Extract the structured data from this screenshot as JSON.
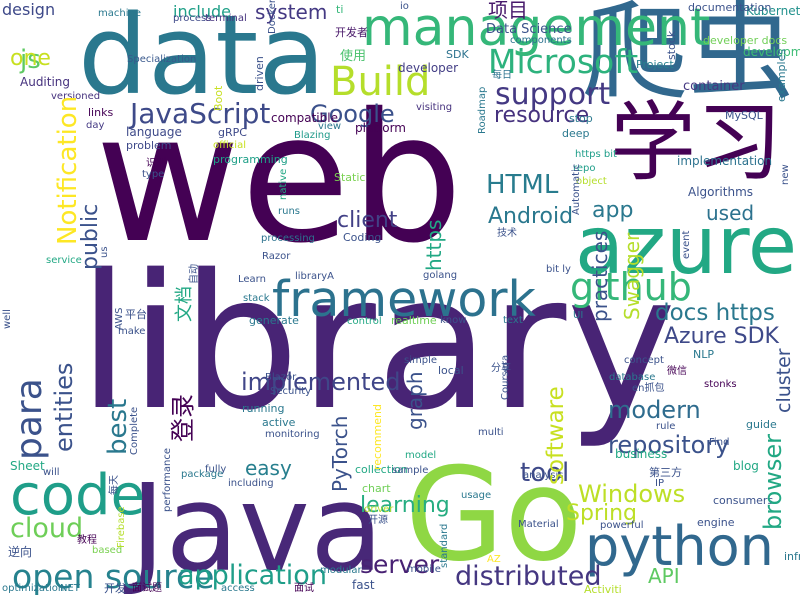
{
  "words": [
    {
      "text": "web",
      "color": "#440154"
    },
    {
      "text": "library",
      "color": "#482475"
    },
    {
      "text": "data",
      "color": "#2a788e"
    },
    {
      "text": "爬虫",
      "color": "#31688e"
    },
    {
      "text": "Java",
      "color": "#482878"
    },
    {
      "text": "Go",
      "color": "#8fd744"
    },
    {
      "text": "学习",
      "color": "#440154"
    },
    {
      "text": "azure",
      "color": "#22a884"
    },
    {
      "text": "framework",
      "color": "#2c728e"
    },
    {
      "text": "python",
      "color": "#31688e"
    },
    {
      "text": "code",
      "color": "#1f9e89"
    },
    {
      "text": "management",
      "color": "#35b779"
    },
    {
      "text": "Build",
      "color": "#b5de2b"
    },
    {
      "text": "github",
      "color": "#35b779"
    },
    {
      "text": "open source",
      "color": "#26828e"
    },
    {
      "text": "application",
      "color": "#1f9e89"
    },
    {
      "text": "JavaScript",
      "color": "#3e4a89"
    },
    {
      "text": "distributed",
      "color": "#453781"
    },
    {
      "text": "Microsoft",
      "color": "#2db27d"
    },
    {
      "text": "cloud",
      "color": "#6ece58"
    },
    {
      "text": "support",
      "color": "#443983"
    },
    {
      "text": "tool",
      "color": "#3e4989"
    },
    {
      "text": "Windows",
      "color": "#bddf26"
    },
    {
      "text": "HTML",
      "color": "#287c8e"
    },
    {
      "text": "app",
      "color": "#2a788e"
    },
    {
      "text": "docs https",
      "color": "#2a788e"
    },
    {
      "text": "repository",
      "color": "#3b528b"
    },
    {
      "text": "Google",
      "color": "#3b518b"
    },
    {
      "text": "resource",
      "color": "#46327e"
    },
    {
      "text": "client",
      "color": "#424086"
    },
    {
      "text": "Android",
      "color": "#2a788e"
    },
    {
      "text": "used",
      "color": "#2c728e"
    },
    {
      "text": "modern",
      "color": "#2f6c8e"
    },
    {
      "text": "Spring",
      "color": "#bddf26"
    },
    {
      "text": "learning",
      "color": "#26ad81"
    },
    {
      "text": "easy",
      "color": "#277f8e"
    },
    {
      "text": "server",
      "color": "#482173"
    },
    {
      "text": "API",
      "color": "#5ec962"
    },
    {
      "text": "implemented",
      "color": "#404688"
    },
    {
      "text": "js",
      "color": "#5ec962"
    },
    {
      "text": "one",
      "color": "#c8e020"
    },
    {
      "text": "项目",
      "color": "#481a6c"
    },
    {
      "text": "system",
      "color": "#443983"
    },
    {
      "text": "include",
      "color": "#1fa088"
    },
    {
      "text": "design",
      "color": "#3e4989"
    },
    {
      "text": "Azure SDK",
      "color": "#3e4989"
    },
    {
      "text": "使用",
      "color": "#4ac16d"
    },
    {
      "text": "Data Science",
      "color": "#3b528b"
    },
    {
      "text": "developer",
      "color": "#433e85"
    },
    {
      "text": "container",
      "color": "#453882"
    },
    {
      "text": "platform",
      "color": "#440154"
    },
    {
      "text": "language",
      "color": "#3e4a89"
    },
    {
      "text": "Algorithms",
      "color": "#3b528b"
    },
    {
      "text": "implementation",
      "color": "#2c728e"
    },
    {
      "text": "MySQL",
      "color": "#3b528b"
    },
    {
      "text": "development",
      "color": "#3dbc74"
    },
    {
      "text": "developer docs",
      "color": "#70cf57"
    },
    {
      "text": "Project",
      "color": "#277f8e"
    },
    {
      "text": "Kubernetes",
      "color": "#21918c"
    },
    {
      "text": "documentation",
      "color": "#3b528b"
    },
    {
      "text": "components",
      "color": "#2c728e"
    },
    {
      "text": "SDK",
      "color": "#2c728e"
    },
    {
      "text": "开发者",
      "color": "#481769"
    },
    {
      "text": "ti",
      "color": "#35b779"
    },
    {
      "text": "io",
      "color": "#3b528b"
    },
    {
      "text": "process",
      "color": "#3e4989"
    },
    {
      "text": "machine",
      "color": "#2a788e"
    },
    {
      "text": "terminal",
      "color": "#46327e"
    },
    {
      "text": "Specialization",
      "color": "#38588c"
    },
    {
      "text": "Auditing",
      "color": "#46327e"
    },
    {
      "text": "versioned",
      "color": "#46327e"
    },
    {
      "text": "links",
      "color": "#440154"
    },
    {
      "text": "day",
      "color": "#443983"
    },
    {
      "text": "gRPC",
      "color": "#3e4989"
    },
    {
      "text": "problem",
      "color": "#3e4989"
    },
    {
      "text": "official",
      "color": "#c8e020"
    },
    {
      "text": "programming",
      "color": "#1fa088"
    },
    {
      "text": "compatible",
      "color": "#440154"
    },
    {
      "text": "Blazing",
      "color": "#1f9a8a"
    },
    {
      "text": "view",
      "color": "#2a788e"
    },
    {
      "text": "visiting",
      "color": "#46327e"
    },
    {
      "text": "stop",
      "color": "#2a788e"
    },
    {
      "text": "deep",
      "color": "#2a788e"
    },
    {
      "text": "每日",
      "color": "#2c728e"
    },
    {
      "text": "识别",
      "color": "#440154"
    },
    {
      "text": "type",
      "color": "#3b528b"
    },
    {
      "text": "Static",
      "color": "#7ad151"
    },
    {
      "text": "runs",
      "color": "#2a788e"
    },
    {
      "text": "processing",
      "color": "#2c728e"
    },
    {
      "text": "Coding",
      "color": "#3b528b"
    },
    {
      "text": "技术",
      "color": "#3b528b"
    },
    {
      "text": "https bit",
      "color": "#1f9e89"
    },
    {
      "text": "object",
      "color": "#b5de2b"
    },
    {
      "text": "repo",
      "color": "#1f9e89"
    },
    {
      "text": "Razor",
      "color": "#3b528b"
    },
    {
      "text": "service",
      "color": "#22a884"
    },
    {
      "text": "Learn",
      "color": "#3b528b"
    },
    {
      "text": "libraryA",
      "color": "#3b528b"
    },
    {
      "text": "golang",
      "color": "#3b528b"
    },
    {
      "text": "bit ly",
      "color": "#3b528b"
    },
    {
      "text": "stack",
      "color": "#2a788e"
    },
    {
      "text": "make",
      "color": "#3b528b"
    },
    {
      "text": "平台",
      "color": "#3b528b"
    },
    {
      "text": "generate",
      "color": "#2a788e"
    },
    {
      "text": "control",
      "color": "#22a884"
    },
    {
      "text": "realtime",
      "color": "#70cf57"
    },
    {
      "text": "know",
      "color": "#3b528b"
    },
    {
      "text": "text",
      "color": "#2a788e"
    },
    {
      "text": "UI",
      "color": "#2a788e"
    },
    {
      "text": "simple",
      "color": "#3b528b"
    },
    {
      "text": "local",
      "color": "#3b528b"
    },
    {
      "text": "分享",
      "color": "#3b528b"
    },
    {
      "text": "concept",
      "color": "#3b528b"
    },
    {
      "text": "database",
      "color": "#2a788e"
    },
    {
      "text": "en抓包",
      "color": "#3b528b"
    },
    {
      "text": "微信",
      "color": "#440154"
    },
    {
      "text": "stonks",
      "color": "#440154"
    },
    {
      "text": "NLP",
      "color": "#2a788e"
    },
    {
      "text": "Blazor",
      "color": "#3b528b"
    },
    {
      "text": "Security",
      "color": "#3b528b"
    },
    {
      "text": "running",
      "color": "#2a788e"
    },
    {
      "text": "active",
      "color": "#2a788e"
    },
    {
      "text": "monitoring",
      "color": "#3b528b"
    },
    {
      "text": "multi",
      "color": "#3b528b"
    },
    {
      "text": "rule",
      "color": "#3b528b"
    },
    {
      "text": "business",
      "color": "#22a884"
    },
    {
      "text": "Find",
      "color": "#3b528b"
    },
    {
      "text": "guide",
      "color": "#2a788e"
    },
    {
      "text": "Sheet",
      "color": "#22a884"
    },
    {
      "text": "will",
      "color": "#3b528b"
    },
    {
      "text": "fully",
      "color": "#3b528b"
    },
    {
      "text": "including",
      "color": "#3b528b"
    },
    {
      "text": "collection",
      "color": "#22a884"
    },
    {
      "text": "sample",
      "color": "#3b528b"
    },
    {
      "text": "model",
      "color": "#22a884"
    },
    {
      "text": "analysis",
      "color": "#3b528b"
    },
    {
      "text": "第三方",
      "color": "#3b528b"
    },
    {
      "text": "IP",
      "color": "#3b528b"
    },
    {
      "text": "blog",
      "color": "#22a884"
    },
    {
      "text": "package",
      "color": "#2a788e"
    },
    {
      "text": "chart",
      "color": "#70cf57"
    },
    {
      "text": "usage",
      "color": "#2a788e"
    },
    {
      "text": "consumers",
      "color": "#3b528b"
    },
    {
      "text": "engine",
      "color": "#3b528b"
    },
    {
      "text": "逆向",
      "color": "#3b528b"
    },
    {
      "text": "教程",
      "color": "#440154"
    },
    {
      "text": "based",
      "color": "#7ad151"
    },
    {
      "text": "driver",
      "color": "#b5de2b"
    },
    {
      "text": "开源",
      "color": "#3b528b"
    },
    {
      "text": "Material",
      "color": "#3b528b"
    },
    {
      "text": "powerful",
      "color": "#3b528b"
    },
    {
      "text": "AZ",
      "color": "#fde725"
    },
    {
      "text": "infrastructure",
      "color": "#2a788e"
    },
    {
      "text": "optimization",
      "color": "#2a788e"
    },
    {
      "text": "NET",
      "color": "#2a788e"
    },
    {
      "text": "开发",
      "color": "#3b528b"
    },
    {
      "text": "面试题",
      "color": "#440154"
    },
    {
      "text": "access",
      "color": "#2a788e"
    },
    {
      "text": "面试",
      "color": "#440154"
    },
    {
      "text": "modular",
      "color": "#2a788e"
    },
    {
      "text": "fast",
      "color": "#3b528b"
    },
    {
      "text": "mobile",
      "color": "#3b528b"
    },
    {
      "text": "Activiti",
      "color": "#b5de2b"
    },
    {
      "text": "para",
      "color": "#3b528b"
    },
    {
      "text": "entities",
      "color": "#3b528b"
    },
    {
      "text": "Notification",
      "color": "#fde725"
    },
    {
      "text": "public",
      "color": "#3b528b"
    },
    {
      "text": "best",
      "color": "#2a788e"
    },
    {
      "text": "登录",
      "color": "#440154"
    },
    {
      "text": "文档",
      "color": "#22a884"
    },
    {
      "text": "PyTorch",
      "color": "#3b528b"
    },
    {
      "text": "graph",
      "color": "#3b528b"
    },
    {
      "text": "https",
      "color": "#22a884"
    },
    {
      "text": "software",
      "color": "#c8e020"
    },
    {
      "text": "browser",
      "color": "#22a884"
    },
    {
      "text": "cluster",
      "color": "#3b528b"
    },
    {
      "text": "Swagger",
      "color": "#b5de2b"
    },
    {
      "text": "practices",
      "color": "#3b528b"
    },
    {
      "text": "examples",
      "color": "#2a788e"
    },
    {
      "text": "new",
      "color": "#3b528b"
    },
    {
      "text": "stock",
      "color": "#3b528b"
    },
    {
      "text": "Boot",
      "color": "#c8e020"
    },
    {
      "text": "driven",
      "color": "#3b528b"
    },
    {
      "text": "Docker",
      "color": "#3b528b"
    },
    {
      "text": "Roadmap",
      "color": "#2a788e"
    },
    {
      "text": "native",
      "color": "#22a884"
    },
    {
      "text": "Automatic",
      "color": "#3b528b"
    },
    {
      "text": "自动",
      "color": "#3b528b"
    },
    {
      "text": "us",
      "color": "#3b528b"
    },
    {
      "text": "AWS",
      "color": "#3b528b"
    },
    {
      "text": "event",
      "color": "#3b528b"
    },
    {
      "text": "well",
      "color": "#3b528b"
    },
    {
      "text": "Complete",
      "color": "#3b528b"
    },
    {
      "text": "recommend",
      "color": "#fde725"
    },
    {
      "text": "Coursera",
      "color": "#3b528b"
    },
    {
      "text": "每天",
      "color": "#3b528b"
    },
    {
      "text": "performance",
      "color": "#3b528b"
    },
    {
      "text": "Firebase",
      "color": "#b5de2b"
    },
    {
      "text": "standard",
      "color": "#2a788e"
    }
  ]
}
